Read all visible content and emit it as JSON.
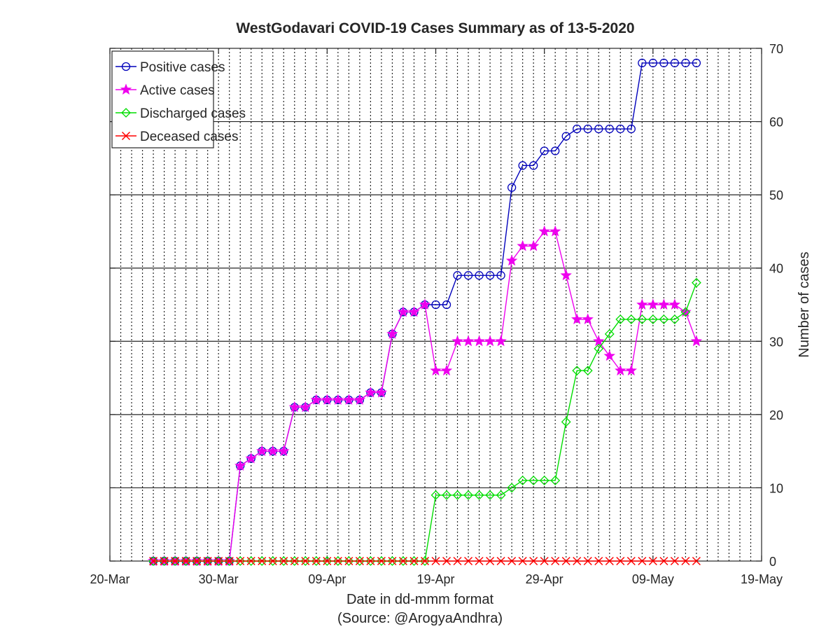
{
  "chart_data": {
    "type": "line",
    "title": "WestGodavari COVID-19 Cases Summary as of 13-5-2020",
    "xlabel": "Date in dd-mmm format",
    "source_note": "(Source: @ArogyaAndhra)",
    "ylabel": "Number of cases",
    "x_start_date": "2020-03-24",
    "xlim": [
      "2020-03-20",
      "2020-05-19"
    ],
    "ylim": [
      0,
      70
    ],
    "x_ticks": [
      "20-Mar",
      "30-Mar",
      "09-Apr",
      "19-Apr",
      "29-Apr",
      "09-May",
      "19-May"
    ],
    "y_ticks": [
      0,
      10,
      20,
      30,
      40,
      50,
      60,
      70
    ],
    "y_axis_side": "right",
    "grid": "vertical dotted daily, horizontal solid every 10",
    "legend": {
      "position": "top-left"
    },
    "series": [
      {
        "name": "Positive cases",
        "color": "#0000bb",
        "marker": "circle",
        "values": [
          0,
          0,
          0,
          0,
          0,
          0,
          0,
          0,
          13,
          14,
          15,
          15,
          15,
          21,
          21,
          22,
          22,
          22,
          22,
          22,
          23,
          23,
          31,
          34,
          34,
          35,
          35,
          35,
          39,
          39,
          39,
          39,
          39,
          51,
          54,
          54,
          56,
          56,
          58,
          59,
          59,
          59,
          59,
          59,
          59,
          68,
          68,
          68,
          68,
          68,
          68
        ]
      },
      {
        "name": "Active cases",
        "color": "#ee00ee",
        "marker": "star",
        "values": [
          0,
          0,
          0,
          0,
          0,
          0,
          0,
          0,
          13,
          14,
          15,
          15,
          15,
          21,
          21,
          22,
          22,
          22,
          22,
          22,
          23,
          23,
          31,
          34,
          34,
          35,
          26,
          26,
          30,
          30,
          30,
          30,
          30,
          41,
          43,
          43,
          45,
          45,
          39,
          33,
          33,
          30,
          28,
          26,
          26,
          35,
          35,
          35,
          35,
          34,
          30
        ]
      },
      {
        "name": "Discharged cases",
        "color": "#00dd00",
        "marker": "diamond",
        "values": [
          0,
          0,
          0,
          0,
          0,
          0,
          0,
          0,
          0,
          0,
          0,
          0,
          0,
          0,
          0,
          0,
          0,
          0,
          0,
          0,
          0,
          0,
          0,
          0,
          0,
          0,
          9,
          9,
          9,
          9,
          9,
          9,
          9,
          10,
          11,
          11,
          11,
          11,
          19,
          26,
          26,
          29,
          31,
          33,
          33,
          33,
          33,
          33,
          33,
          34,
          38
        ]
      },
      {
        "name": "Deceased cases",
        "color": "#ff0000",
        "marker": "cross",
        "values": [
          0,
          0,
          0,
          0,
          0,
          0,
          0,
          0,
          0,
          0,
          0,
          0,
          0,
          0,
          0,
          0,
          0,
          0,
          0,
          0,
          0,
          0,
          0,
          0,
          0,
          0,
          0,
          0,
          0,
          0,
          0,
          0,
          0,
          0,
          0,
          0,
          0,
          0,
          0,
          0,
          0,
          0,
          0,
          0,
          0,
          0,
          0,
          0,
          0,
          0,
          0
        ]
      }
    ]
  }
}
